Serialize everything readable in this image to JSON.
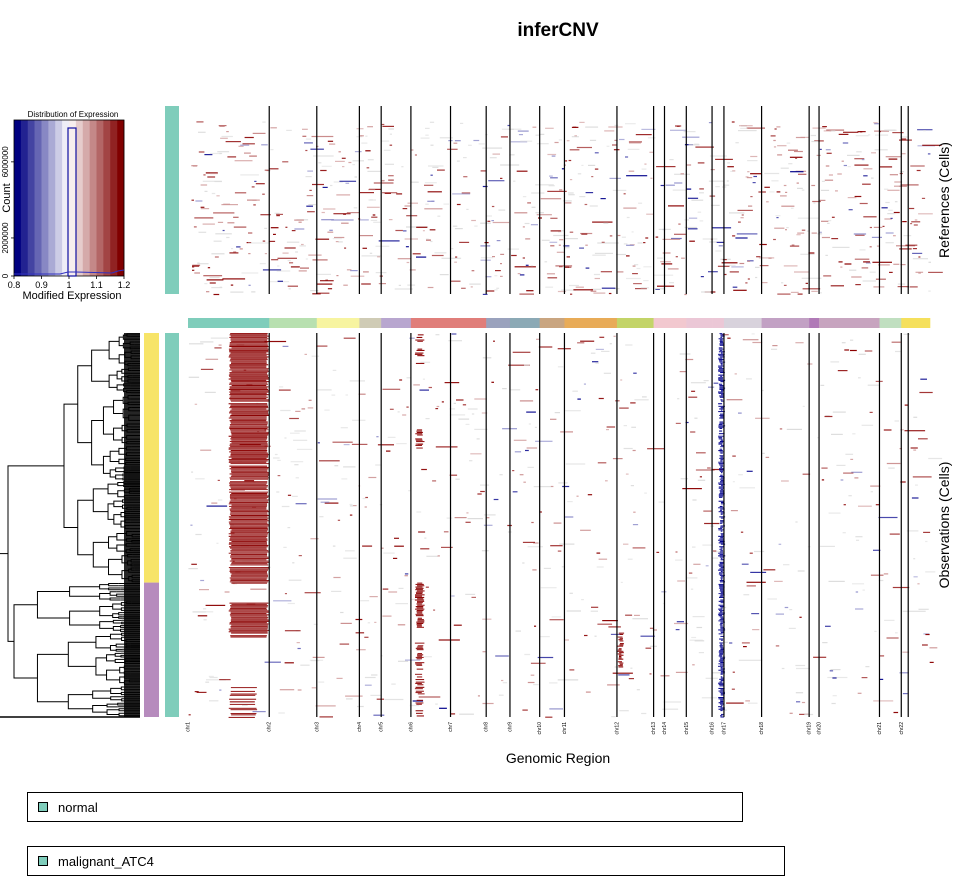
{
  "chart_data": {
    "type": "heatmap",
    "title": "inferCNV",
    "xlabel": "Genomic Region",
    "ylabel_references": "References (Cells)",
    "ylabel_observations": "Observations (Cells)",
    "chromosomes": [
      {
        "label": "chr1",
        "color": "#7fcdbb",
        "rel": 82
      },
      {
        "label": "chr2",
        "color": "#b8e0b0",
        "rel": 48
      },
      {
        "label": "chr3",
        "color": "#f7f4a0",
        "rel": 43
      },
      {
        "label": "chr4",
        "color": "#cfcbb5",
        "rel": 22
      },
      {
        "label": "chr5",
        "color": "#b8a6cf",
        "rel": 30
      },
      {
        "label": "chr6",
        "color": "#e07e7a",
        "rel": 40
      },
      {
        "label": "chr7",
        "color": "#e07e7a",
        "rel": 36
      },
      {
        "label": "chr8",
        "color": "#9aa2bd",
        "rel": 24
      },
      {
        "label": "chr9",
        "color": "#8ba9b5",
        "rel": 30
      },
      {
        "label": "chr10",
        "color": "#c9a580",
        "rel": 25
      },
      {
        "label": "chr11",
        "color": "#e8ab57",
        "rel": 53
      },
      {
        "label": "chr12",
        "color": "#c3d468",
        "rel": 37
      },
      {
        "label": "chr13",
        "color": "#f2c8cf",
        "rel": 11
      },
      {
        "label": "chr14",
        "color": "#f2c8cf",
        "rel": 22
      },
      {
        "label": "chr15",
        "color": "#ebc7d6",
        "rel": 26
      },
      {
        "label": "chr16",
        "color": "#ebc7d6",
        "rel": 12
      },
      {
        "label": "chr17",
        "color": "#d8d2dc",
        "rel": 38
      },
      {
        "label": "chr18",
        "color": "#c2a1c4",
        "rel": 48
      },
      {
        "label": "chr19",
        "color": "#b07ab7",
        "rel": 10
      },
      {
        "label": "chr20",
        "color": "#c7a4bf",
        "rel": 61
      },
      {
        "label": "chr21",
        "color": "#c0dfc0",
        "rel": 22
      },
      {
        "label": "chr22",
        "color": "#f5e05c",
        "rel": 7
      },
      {
        "label": "",
        "color": "#f5e05c",
        "rel": 22
      }
    ],
    "groups": [
      {
        "name": "normal",
        "color": "#7fcdbb"
      },
      {
        "name": "malignant_ATC4",
        "color": "#7fcdbb"
      }
    ],
    "clusters": [
      {
        "color": "#f7e468",
        "share": 0.65
      },
      {
        "color": "#b68bbd",
        "share": 0.35
      }
    ],
    "observation_cnv": [
      {
        "chr": "chr1",
        "from": 0.5,
        "to": 1.0,
        "state": "gain",
        "rows": "cluster1"
      },
      {
        "chr": "chr1",
        "from": 0.5,
        "to": 1.0,
        "state": "gain",
        "rows": "part of cluster2"
      },
      {
        "chr": "chr6",
        "from": 0.1,
        "to": 0.35,
        "state": "gain",
        "rows": "patchy"
      },
      {
        "chr": "chr16",
        "from": 0.5,
        "to": 1.0,
        "state": "loss",
        "rows": "all"
      }
    ],
    "colorkey": {
      "title": "Distribution of Expression",
      "xlabel": "Modified Expression",
      "ylabel": "Count",
      "xticks": [
        "0.8",
        "0.9",
        "1",
        "1.1",
        "1.2"
      ],
      "yticks": [
        "0",
        "2000000",
        "6000000"
      ],
      "xlim": [
        0.8,
        1.2
      ],
      "low_color": "#000080",
      "mid_color": "#ffffff",
      "high_color": "#800000"
    }
  },
  "legend": {
    "items": [
      {
        "label": "normal",
        "color": "#7fcdbb"
      },
      {
        "label": "malignant_ATC4",
        "color": "#7fcdbb"
      }
    ]
  }
}
